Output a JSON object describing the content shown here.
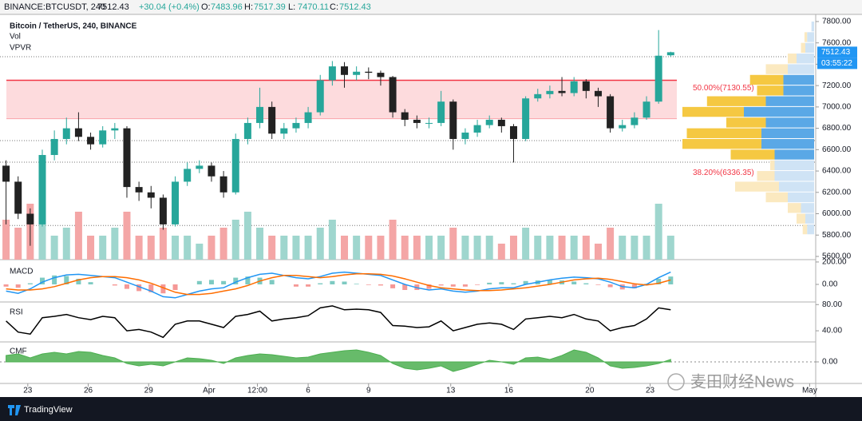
{
  "chart_data": {
    "type": "candlestick",
    "header": {
      "symbol": "BINANCE:BTCUSDT, 240",
      "change": "+30.04 (+0.4%)",
      "ohlc_labels": [
        "O:",
        "H:",
        "L:",
        "C:"
      ],
      "change_color": "#26a69a"
    },
    "title": "Bitcoin / TetherUS, 240, BINANCE",
    "pane_labels": [
      "Vol",
      "VPVR"
    ],
    "countdown": "03:55:22",
    "watermark": "麦田财经News",
    "brand": "TradingView",
    "xlim": [
      -0.5,
      67
    ],
    "xticks": [
      {
        "value": 1.8,
        "label": "23"
      },
      {
        "value": 6.8,
        "label": "26"
      },
      {
        "value": 11.8,
        "label": "29"
      },
      {
        "value": 16.8,
        "label": "Apr"
      },
      {
        "value": 20.8,
        "label": "12:00"
      },
      {
        "value": 25,
        "label": "6"
      },
      {
        "value": 30,
        "label": "9"
      },
      {
        "value": 36.8,
        "label": "13"
      },
      {
        "value": 41.6,
        "label": "16"
      },
      {
        "value": 48.3,
        "label": "20"
      },
      {
        "value": 53.3,
        "label": "23"
      },
      {
        "value": 66.5,
        "label": "May"
      }
    ],
    "ylim": [
      5570,
      7867
    ],
    "yticks": [
      {
        "value": 5600,
        "label": "5600.00"
      },
      {
        "value": 5800,
        "label": "5800.00"
      },
      {
        "value": 6000,
        "label": "6000.00"
      },
      {
        "value": 6200,
        "label": "6200.00"
      },
      {
        "value": 6400,
        "label": "6400.00"
      },
      {
        "value": 6600,
        "label": "6600.00"
      },
      {
        "value": 6800,
        "label": "6800.00"
      },
      {
        "value": 7000,
        "label": "7000.00"
      },
      {
        "value": 7200,
        "label": "7200.00"
      },
      {
        "value": 7400,
        "label": "7400.00"
      },
      {
        "value": 7600,
        "label": "7600.00"
      },
      {
        "value": 7800,
        "label": "7800.00"
      }
    ],
    "colors": {
      "up": "#26a69a",
      "down": "#222222",
      "vol_up": "#9fd6ce",
      "vol_down": "#f4a6a6",
      "price_box": "#2196f3"
    },
    "open": [
      6450,
      6300,
      6000,
      5900,
      6550,
      6700,
      6800,
      6720,
      6650,
      6780,
      6800,
      6250,
      6200,
      6150,
      5900,
      6300,
      6420,
      6450,
      6350,
      6200,
      6700,
      6850,
      7000,
      6750,
      6800,
      6850,
      6950,
      7250,
      7380,
      7300,
      7330,
      7320,
      7280,
      6950,
      6880,
      6850,
      6850,
      7050,
      6700,
      6760,
      6830,
      6880,
      6820,
      6700,
      7080,
      7120,
      7150,
      7130,
      7240,
      7150,
      7100,
      6800,
      6830,
      6900,
      7050,
      7483.96
    ],
    "high": [
      6500,
      6350,
      6050,
      6600,
      6780,
      6900,
      6950,
      6760,
      6820,
      6850,
      6820,
      6300,
      6260,
      6180,
      6350,
      6480,
      6500,
      6480,
      6400,
      6750,
      6900,
      7180,
      7050,
      6850,
      6900,
      7000,
      7300,
      7430,
      7420,
      7380,
      7370,
      7340,
      7290,
      6980,
      6920,
      6900,
      7150,
      7070,
      6800,
      6880,
      6920,
      6900,
      6840,
      7100,
      7170,
      7200,
      7280,
      7280,
      7260,
      7180,
      7120,
      6880,
      6950,
      7100,
      7720,
      7517.39
    ],
    "low": [
      5900,
      5950,
      5700,
      5880,
      6500,
      6650,
      6680,
      6600,
      6620,
      6700,
      6150,
      6120,
      6050,
      5850,
      5880,
      6260,
      6380,
      6300,
      6150,
      6180,
      6650,
      6800,
      6700,
      6700,
      6760,
      6800,
      6920,
      7200,
      7180,
      7250,
      7260,
      7200,
      6900,
      6820,
      6800,
      6800,
      6820,
      6600,
      6650,
      6720,
      6800,
      6760,
      6480,
      6680,
      7050,
      7080,
      7100,
      7100,
      7080,
      7000,
      6760,
      6770,
      6800,
      6880,
      7030,
      7470.11
    ],
    "close": [
      6300,
      6000,
      5900,
      6550,
      6700,
      6800,
      6720,
      6650,
      6780,
      6800,
      6250,
      6200,
      6150,
      5900,
      6300,
      6420,
      6450,
      6350,
      6200,
      6700,
      6850,
      7000,
      6750,
      6800,
      6850,
      6950,
      7250,
      7380,
      7300,
      7330,
      7320,
      7280,
      6950,
      6880,
      6850,
      6850,
      7050,
      6700,
      6760,
      6830,
      6880,
      6820,
      6700,
      7080,
      7120,
      7150,
      7130,
      7240,
      7150,
      7100,
      6800,
      6830,
      6900,
      7050,
      7480,
      7512.43
    ],
    "volume": [
      5,
      4,
      7,
      5,
      3,
      4,
      6,
      3,
      3,
      4,
      6,
      3,
      3,
      4,
      3,
      3,
      2,
      3,
      4,
      5,
      6,
      4,
      3,
      3,
      3,
      3,
      4,
      5,
      3,
      3,
      3,
      3,
      5,
      3,
      3,
      3,
      3,
      4,
      3,
      3,
      3,
      2,
      3,
      4,
      3,
      3,
      3,
      3,
      3,
      2,
      4,
      3,
      3,
      3,
      7,
      3
    ],
    "zone": [
      6890,
      7250
    ],
    "zone_color": "#f23645",
    "levels": [
      7470,
      6685,
      6483,
      5890
    ],
    "fib": [
      {
        "value": 7130.55,
        "label": "50.00%(7130.55)"
      },
      {
        "value": 6336.35,
        "label": "38.20%(6336.35)"
      }
    ],
    "vpvr": {
      "bins": [
        5800,
        5900,
        6000,
        6100,
        6200,
        6300,
        6400,
        6500,
        6600,
        6700,
        6800,
        6900,
        7000,
        7100,
        7200,
        7300,
        7400,
        7500,
        7600,
        7700,
        7800
      ],
      "up": [
        8,
        10,
        15,
        30,
        40,
        45,
        45,
        45,
        60,
        60,
        55,
        80,
        55,
        35,
        35,
        30,
        20,
        10,
        8,
        3
      ],
      "down": [
        5,
        10,
        15,
        25,
        50,
        20,
        5,
        50,
        90,
        85,
        45,
        70,
        67,
        30,
        38,
        25,
        10,
        5,
        3,
        0
      ],
      "value_area": [
        6500,
        7300
      ],
      "colors": {
        "up": "#5aa8e6",
        "down": "#f5c842",
        "up_pale": "#cfe3f5",
        "down_pale": "#fbe9c0"
      }
    },
    "macd": {
      "name": "MACD",
      "ylim": [
        -157,
        221
      ],
      "yticks": [
        {
          "value": 200,
          "label": "200.00"
        },
        {
          "value": 0,
          "label": "0.00"
        }
      ],
      "macd": [
        -60,
        -80,
        -40,
        20,
        60,
        85,
        90,
        80,
        70,
        60,
        20,
        -20,
        -60,
        -110,
        -120,
        -90,
        -60,
        -40,
        -30,
        20,
        60,
        90,
        100,
        80,
        60,
        50,
        70,
        100,
        110,
        100,
        90,
        80,
        40,
        0,
        -30,
        -50,
        -40,
        -60,
        -70,
        -60,
        -40,
        -30,
        -30,
        0,
        20,
        40,
        55,
        65,
        60,
        50,
        20,
        -20,
        -30,
        0,
        60,
        110
      ],
      "signal": [
        -40,
        -50,
        -50,
        -40,
        -20,
        10,
        40,
        60,
        70,
        70,
        60,
        40,
        10,
        -30,
        -70,
        -90,
        -90,
        -80,
        -60,
        -40,
        -10,
        30,
        60,
        80,
        80,
        70,
        60,
        70,
        85,
        95,
        95,
        90,
        75,
        50,
        20,
        -10,
        -30,
        -40,
        -50,
        -55,
        -55,
        -50,
        -40,
        -30,
        -15,
        0,
        20,
        40,
        50,
        55,
        45,
        25,
        5,
        -5,
        10,
        40
      ],
      "hist": [
        -20,
        -30,
        10,
        60,
        80,
        75,
        50,
        20,
        0,
        -10,
        -40,
        -60,
        -70,
        -80,
        -50,
        0,
        30,
        40,
        30,
        60,
        70,
        60,
        40,
        0,
        -20,
        -20,
        10,
        30,
        25,
        5,
        -5,
        -10,
        -35,
        -50,
        -50,
        -40,
        -10,
        -20,
        -20,
        -5,
        15,
        20,
        10,
        30,
        35,
        40,
        35,
        25,
        10,
        -5,
        -25,
        -45,
        -35,
        5,
        50,
        70
      ],
      "colors": {
        "macd": "#2196f3",
        "signal": "#ff6d00",
        "pos": "#26a69a",
        "neg": "#ef5350"
      }
    },
    "rsi": {
      "name": "RSI",
      "ylim": [
        23,
        84
      ],
      "yticks": [
        {
          "value": 80,
          "label": "80.00"
        },
        {
          "value": 40,
          "label": "40.00"
        }
      ],
      "color": "#000000",
      "values": [
        55,
        38,
        35,
        60,
        62,
        65,
        60,
        57,
        62,
        60,
        40,
        42,
        38,
        30,
        50,
        55,
        55,
        50,
        45,
        62,
        65,
        70,
        55,
        58,
        60,
        63,
        75,
        78,
        72,
        73,
        72,
        68,
        48,
        47,
        45,
        46,
        55,
        40,
        45,
        50,
        52,
        50,
        42,
        58,
        60,
        62,
        60,
        65,
        58,
        55,
        40,
        45,
        48,
        58,
        75,
        72
      ]
    },
    "cmf": {
      "name": "CMF",
      "ylim": [
        -0.27,
        0.25
      ],
      "yticks": [
        {
          "value": 0,
          "label": "0.00"
        }
      ],
      "color": "#4caf50",
      "values": [
        0.08,
        0.1,
        0.05,
        0.1,
        0.12,
        0.1,
        0.13,
        0.12,
        0.08,
        0.05,
        -0.02,
        -0.05,
        -0.03,
        -0.05,
        0.0,
        0.05,
        0.04,
        0.02,
        -0.02,
        0.05,
        0.08,
        0.1,
        0.09,
        0.07,
        0.05,
        0.06,
        0.1,
        0.12,
        0.14,
        0.15,
        0.12,
        0.08,
        -0.02,
        -0.08,
        -0.1,
        -0.08,
        -0.05,
        -0.12,
        -0.08,
        -0.03,
        0.02,
        0.0,
        -0.03,
        0.05,
        0.06,
        0.03,
        0.08,
        0.15,
        0.12,
        0.05,
        -0.05,
        -0.08,
        -0.07,
        -0.05,
        -0.02,
        0.03
      ]
    }
  }
}
